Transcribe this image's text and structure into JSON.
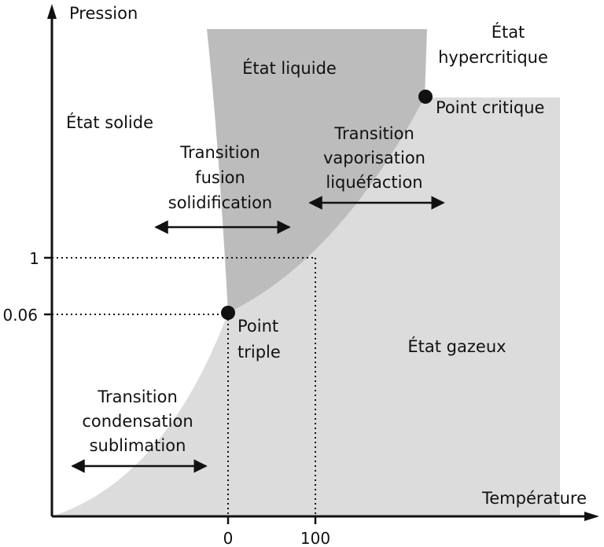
{
  "axes": {
    "y_label": "Pression",
    "x_label": "Température",
    "y_ticks": [
      "1",
      "0.06"
    ],
    "x_ticks": [
      "0",
      "100"
    ]
  },
  "regions": {
    "solid": "État solide",
    "liquid": "État liquide",
    "gas": "État gazeux",
    "hypercritical_line1": "État",
    "hypercritical_line2": "hypercritique"
  },
  "points": {
    "critical": "Point critique",
    "triple_line1": "Point",
    "triple_line2": "triple"
  },
  "transitions": {
    "fusion": [
      "Transition",
      "fusion",
      "solidification"
    ],
    "vaporisation": [
      "Transition",
      "vaporisation",
      "liquéfaction"
    ],
    "sublimation": [
      "Transition",
      "condensation",
      "sublimation"
    ]
  },
  "colors": {
    "liquid_fill": "#bcbcbc",
    "gas_fill": "#dcdcdc",
    "ink": "#111111"
  }
}
